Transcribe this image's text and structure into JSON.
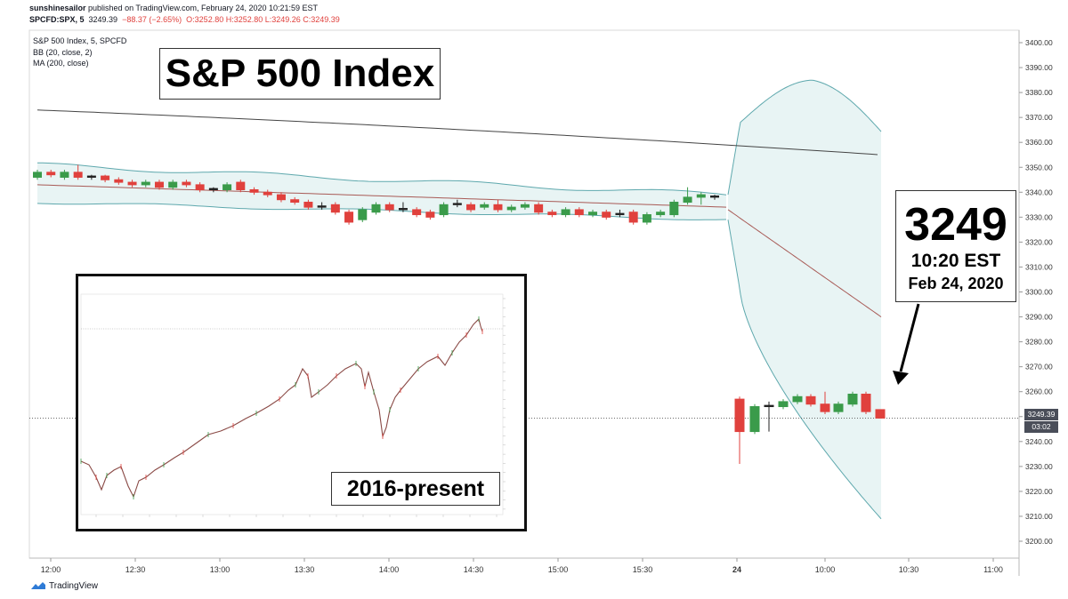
{
  "header": {
    "author": "sunshinesailor",
    "published_text": " published on TradingView.com, February 24, 2020 10:21:59 EST",
    "symbol": "SPCFD:SPX, 5",
    "price": "3249.39",
    "change": "−88.37 (−2.65%)",
    "ohlc": "O:3252.80 H:3252.80 L:3249.26 C:3249.39"
  },
  "indicators": [
    "S&P 500 Index, 5, SPCFD",
    "BB (20, close, 2)",
    "MA (200, close)"
  ],
  "annotations": {
    "title": "S&P 500 Index",
    "callout_value": "3249",
    "callout_time": "10:20 EST",
    "callout_date": "Feb 24, 2020",
    "inset_label": "2016-present"
  },
  "price_tag": "3249.39",
  "time_tag": "03:02",
  "brand": "TradingView",
  "colors": {
    "up": "#3a9b4a",
    "down": "#e0413d",
    "band_fill": "#e8f4f4",
    "band_line": "#5ea8ad",
    "basis": "#a85a56",
    "ma": "#444444"
  },
  "chart_data": {
    "type": "candlestick",
    "title": "S&P 500 Index, 5, SPCFD",
    "y_ticks": [
      3200,
      3210,
      3220,
      3230,
      3240,
      3250,
      3260,
      3270,
      3280,
      3290,
      3300,
      3310,
      3320,
      3330,
      3340,
      3350,
      3360,
      3370,
      3380,
      3390,
      3400
    ],
    "y_tick_labels": [
      "3200.00",
      "3210.00",
      "3220.00",
      "3230.00",
      "3240.00",
      "3250.00",
      "3260.00",
      "3270.00",
      "3280.00",
      "3290.00",
      "3300.00",
      "3310.00",
      "3320.00",
      "3330.00",
      "3340.00",
      "3350.00",
      "3360.00",
      "3370.00",
      "3380.00",
      "3390.00",
      "3400.00"
    ],
    "x_tick_labels": [
      "12:00",
      "12:30",
      "13:00",
      "13:30",
      "14:00",
      "14:30",
      "15:00",
      "15:30",
      "24",
      "10:00",
      "10:30",
      "11:00"
    ],
    "ylim": [
      3195,
      3405
    ],
    "candles": [
      {
        "o": 3346,
        "c": 3348,
        "h": 3349,
        "l": 3345
      },
      {
        "o": 3348,
        "c": 3347,
        "h": 3349,
        "l": 3346
      },
      {
        "o": 3346,
        "c": 3348,
        "h": 3349,
        "l": 3345
      },
      {
        "o": 3348,
        "c": 3346,
        "h": 3351,
        "l": 3345
      },
      {
        "o": 3346,
        "c": 3346.5,
        "h": 3347,
        "l": 3345
      },
      {
        "o": 3346.5,
        "c": 3345,
        "h": 3347,
        "l": 3344
      },
      {
        "o": 3345,
        "c": 3344,
        "h": 3346,
        "l": 3343
      },
      {
        "o": 3344,
        "c": 3343,
        "h": 3345,
        "l": 3342
      },
      {
        "o": 3343,
        "c": 3344,
        "h": 3345,
        "l": 3342
      },
      {
        "o": 3344,
        "c": 3342,
        "h": 3345,
        "l": 3341
      },
      {
        "o": 3342,
        "c": 3344,
        "h": 3345,
        "l": 3341
      },
      {
        "o": 3344,
        "c": 3343,
        "h": 3345,
        "l": 3342
      },
      {
        "o": 3343,
        "c": 3341,
        "h": 3344,
        "l": 3340
      },
      {
        "o": 3341,
        "c": 3341.5,
        "h": 3342,
        "l": 3340
      },
      {
        "o": 3341,
        "c": 3343,
        "h": 3344,
        "l": 3340
      },
      {
        "o": 3344,
        "c": 3341,
        "h": 3345,
        "l": 3340
      },
      {
        "o": 3341,
        "c": 3340,
        "h": 3342,
        "l": 3339
      },
      {
        "o": 3340,
        "c": 3339,
        "h": 3341,
        "l": 3338
      },
      {
        "o": 3339,
        "c": 3337,
        "h": 3340,
        "l": 3336
      },
      {
        "o": 3337,
        "c": 3336,
        "h": 3338,
        "l": 3335
      },
      {
        "o": 3336,
        "c": 3334,
        "h": 3337,
        "l": 3333
      },
      {
        "o": 3334,
        "c": 3334.5,
        "h": 3336,
        "l": 3333
      },
      {
        "o": 3335,
        "c": 3332,
        "h": 3336,
        "l": 3331
      },
      {
        "o": 3332,
        "c": 3328,
        "h": 3333,
        "l": 3327
      },
      {
        "o": 3329,
        "c": 3333,
        "h": 3334,
        "l": 3328
      },
      {
        "o": 3332,
        "c": 3335,
        "h": 3336,
        "l": 3331
      },
      {
        "o": 3335,
        "c": 3333,
        "h": 3336,
        "l": 3332
      },
      {
        "o": 3333,
        "c": 3333.5,
        "h": 3336,
        "l": 3332
      },
      {
        "o": 3333,
        "c": 3331,
        "h": 3334,
        "l": 3330
      },
      {
        "o": 3332,
        "c": 3330,
        "h": 3333,
        "l": 3329
      },
      {
        "o": 3331,
        "c": 3335,
        "h": 3336,
        "l": 3330
      },
      {
        "o": 3335,
        "c": 3335.5,
        "h": 3337,
        "l": 3334
      },
      {
        "o": 3335,
        "c": 3333,
        "h": 3336,
        "l": 3332
      },
      {
        "o": 3334,
        "c": 3335,
        "h": 3336,
        "l": 3333
      },
      {
        "o": 3335,
        "c": 3333,
        "h": 3337,
        "l": 3332
      },
      {
        "o": 3333,
        "c": 3334,
        "h": 3335,
        "l": 3332
      },
      {
        "o": 3334,
        "c": 3335,
        "h": 3336,
        "l": 3333
      },
      {
        "o": 3335,
        "c": 3332,
        "h": 3336,
        "l": 3331
      },
      {
        "o": 3332,
        "c": 3331,
        "h": 3333,
        "l": 3330
      },
      {
        "o": 3331,
        "c": 3333,
        "h": 3334,
        "l": 3330
      },
      {
        "o": 3333,
        "c": 3331,
        "h": 3334,
        "l": 3330
      },
      {
        "o": 3331,
        "c": 3332,
        "h": 3333,
        "l": 3330
      },
      {
        "o": 3332,
        "c": 3330,
        "h": 3333,
        "l": 3329
      },
      {
        "o": 3331,
        "c": 3331.5,
        "h": 3333,
        "l": 3330
      },
      {
        "o": 3332,
        "c": 3328,
        "h": 3333,
        "l": 3327
      },
      {
        "o": 3328,
        "c": 3331,
        "h": 3332,
        "l": 3327
      },
      {
        "o": 3331,
        "c": 3332,
        "h": 3333,
        "l": 3330
      },
      {
        "o": 3331,
        "c": 3336,
        "h": 3337,
        "l": 3330
      },
      {
        "o": 3336,
        "c": 3338,
        "h": 3342,
        "l": 3335
      },
      {
        "o": 3338,
        "c": 3339,
        "h": 3340,
        "l": 3335
      },
      {
        "o": 3338.5,
        "c": 3338,
        "h": 3339,
        "l": 3337
      },
      {
        "o": 3257,
        "c": 3244,
        "h": 3258,
        "l": 3231
      },
      {
        "o": 3244,
        "c": 3254,
        "h": 3255,
        "l": 3243
      },
      {
        "o": 3254,
        "c": 3254.5,
        "h": 3256,
        "l": 3244
      },
      {
        "o": 3254,
        "c": 3256,
        "h": 3257,
        "l": 3253
      },
      {
        "o": 3256,
        "c": 3258,
        "h": 3259,
        "l": 3255
      },
      {
        "o": 3258,
        "c": 3255,
        "h": 3259,
        "l": 3254
      },
      {
        "o": 3255,
        "c": 3252,
        "h": 3260,
        "l": 3251
      },
      {
        "o": 3252,
        "c": 3255,
        "h": 3256,
        "l": 3251
      },
      {
        "o": 3255,
        "c": 3259,
        "h": 3260,
        "l": 3254
      },
      {
        "o": 3259,
        "c": 3252,
        "h": 3260,
        "l": 3251
      },
      {
        "o": 3252.8,
        "c": 3249.4,
        "h": 3252.8,
        "l": 3249.3
      }
    ],
    "ma200": {
      "start": 3373,
      "end": 3355
    },
    "bb_basis_session1": [
      3343,
      3334
    ],
    "bb_basis_session2": [
      3333,
      3290
    ],
    "bb_upper_session2_peak": 3385,
    "bb_lower_session2_end": 3209,
    "current_price": 3249.39
  }
}
